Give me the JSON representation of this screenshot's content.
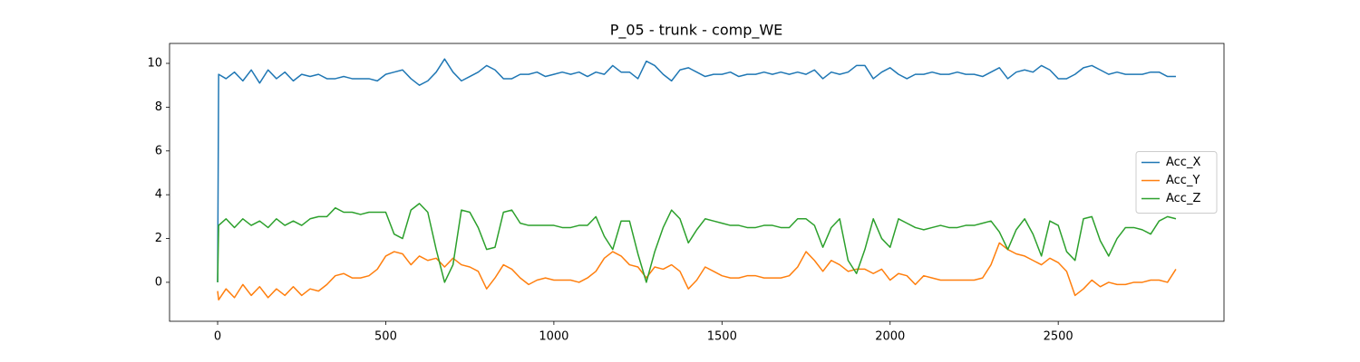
{
  "chart_data": {
    "type": "line",
    "title": "P_05 - trunk - comp_WE",
    "x": [
      0,
      3,
      25,
      50,
      75,
      100,
      125,
      150,
      175,
      200,
      225,
      250,
      275,
      300,
      325,
      350,
      375,
      400,
      425,
      450,
      475,
      500,
      525,
      550,
      575,
      600,
      625,
      650,
      675,
      700,
      725,
      750,
      775,
      800,
      825,
      850,
      875,
      900,
      925,
      950,
      975,
      1000,
      1025,
      1050,
      1075,
      1100,
      1125,
      1150,
      1175,
      1200,
      1225,
      1250,
      1275,
      1300,
      1325,
      1350,
      1375,
      1400,
      1425,
      1450,
      1475,
      1500,
      1525,
      1550,
      1575,
      1600,
      1625,
      1650,
      1675,
      1700,
      1725,
      1750,
      1775,
      1800,
      1825,
      1850,
      1875,
      1900,
      1925,
      1950,
      1975,
      2000,
      2025,
      2050,
      2075,
      2100,
      2125,
      2150,
      2175,
      2200,
      2225,
      2250,
      2275,
      2300,
      2325,
      2350,
      2375,
      2400,
      2425,
      2450,
      2475,
      2500,
      2525,
      2550,
      2575,
      2600,
      2625,
      2650,
      2675,
      2700,
      2725,
      2750,
      2775,
      2800,
      2825,
      2850
    ],
    "series": [
      {
        "name": "Acc_X",
        "color": "#1f77b4",
        "values": [
          0,
          9.5,
          9.3,
          9.6,
          9.2,
          9.7,
          9.1,
          9.7,
          9.3,
          9.6,
          9.2,
          9.5,
          9.4,
          9.5,
          9.3,
          9.3,
          9.4,
          9.3,
          9.3,
          9.3,
          9.2,
          9.5,
          9.6,
          9.7,
          9.3,
          9.0,
          9.2,
          9.6,
          10.2,
          9.6,
          9.2,
          9.4,
          9.6,
          9.9,
          9.7,
          9.3,
          9.3,
          9.5,
          9.5,
          9.6,
          9.4,
          9.5,
          9.6,
          9.5,
          9.6,
          9.4,
          9.6,
          9.5,
          9.9,
          9.6,
          9.6,
          9.3,
          10.1,
          9.9,
          9.5,
          9.2,
          9.7,
          9.8,
          9.6,
          9.4,
          9.5,
          9.5,
          9.6,
          9.4,
          9.5,
          9.5,
          9.6,
          9.5,
          9.6,
          9.5,
          9.6,
          9.5,
          9.7,
          9.3,
          9.6,
          9.5,
          9.6,
          9.9,
          9.9,
          9.3,
          9.6,
          9.8,
          9.5,
          9.3,
          9.5,
          9.5,
          9.6,
          9.5,
          9.5,
          9.6,
          9.5,
          9.5,
          9.4,
          9.6,
          9.8,
          9.3,
          9.6,
          9.7,
          9.6,
          9.9,
          9.7,
          9.3,
          9.3,
          9.5,
          9.8,
          9.9,
          9.7,
          9.5,
          9.6,
          9.5,
          9.5,
          9.5,
          9.6,
          9.6,
          9.4,
          9.4
        ]
      },
      {
        "name": "Acc_Y",
        "color": "#ff7f0e",
        "values": [
          -0.4,
          -0.8,
          -0.3,
          -0.7,
          -0.1,
          -0.6,
          -0.2,
          -0.7,
          -0.3,
          -0.6,
          -0.2,
          -0.6,
          -0.3,
          -0.4,
          -0.1,
          0.3,
          0.4,
          0.2,
          0.2,
          0.3,
          0.6,
          1.2,
          1.4,
          1.3,
          0.8,
          1.2,
          1.0,
          1.1,
          0.7,
          1.1,
          0.8,
          0.7,
          0.5,
          -0.3,
          0.2,
          0.8,
          0.6,
          0.2,
          -0.1,
          0.1,
          0.2,
          0.1,
          0.1,
          0.1,
          0.0,
          0.2,
          0.5,
          1.1,
          1.4,
          1.2,
          0.8,
          0.7,
          0.2,
          0.7,
          0.6,
          0.8,
          0.5,
          -0.3,
          0.1,
          0.7,
          0.5,
          0.3,
          0.2,
          0.2,
          0.3,
          0.3,
          0.2,
          0.2,
          0.2,
          0.3,
          0.7,
          1.4,
          1.0,
          0.5,
          1.0,
          0.8,
          0.5,
          0.6,
          0.6,
          0.4,
          0.6,
          0.1,
          0.4,
          0.3,
          -0.1,
          0.3,
          0.2,
          0.1,
          0.1,
          0.1,
          0.1,
          0.1,
          0.2,
          0.8,
          1.8,
          1.5,
          1.3,
          1.2,
          1.0,
          0.8,
          1.1,
          0.9,
          0.5,
          -0.6,
          -0.3,
          0.1,
          -0.2,
          0.0,
          -0.1,
          -0.1,
          0.0,
          0.0,
          0.1,
          0.1,
          0.0,
          0.6
        ]
      },
      {
        "name": "Acc_Z",
        "color": "#2ca02c",
        "values": [
          0,
          2.6,
          2.9,
          2.5,
          2.9,
          2.6,
          2.8,
          2.5,
          2.9,
          2.6,
          2.8,
          2.6,
          2.9,
          3.0,
          3.0,
          3.4,
          3.2,
          3.2,
          3.1,
          3.2,
          3.2,
          3.2,
          2.2,
          2.0,
          3.3,
          3.6,
          3.2,
          1.5,
          0.0,
          0.8,
          3.3,
          3.2,
          2.5,
          1.5,
          1.6,
          3.2,
          3.3,
          2.7,
          2.6,
          2.6,
          2.6,
          2.6,
          2.5,
          2.5,
          2.6,
          2.6,
          3.0,
          2.1,
          1.5,
          2.8,
          2.8,
          1.3,
          0.0,
          1.4,
          2.5,
          3.3,
          2.9,
          1.8,
          2.4,
          2.9,
          2.8,
          2.7,
          2.6,
          2.6,
          2.5,
          2.5,
          2.6,
          2.6,
          2.5,
          2.5,
          2.9,
          2.9,
          2.6,
          1.6,
          2.5,
          2.9,
          1.0,
          0.4,
          1.5,
          2.9,
          2.0,
          1.6,
          2.9,
          2.7,
          2.5,
          2.4,
          2.5,
          2.6,
          2.5,
          2.5,
          2.6,
          2.6,
          2.7,
          2.8,
          2.3,
          1.5,
          2.4,
          2.9,
          2.2,
          1.2,
          2.8,
          2.6,
          1.4,
          1.0,
          2.9,
          3.0,
          1.9,
          1.2,
          2.0,
          2.5,
          2.5,
          2.4,
          2.2,
          2.8,
          3.0,
          2.9
        ]
      }
    ],
    "xlim": [
      -143,
      2993
    ],
    "ylim": [
      -1.78,
      10.91
    ],
    "xticks": [
      0,
      500,
      1000,
      1500,
      2000,
      2500
    ],
    "yticks": [
      0,
      2,
      4,
      6,
      8,
      10
    ],
    "grid": false,
    "legend": "center right"
  }
}
